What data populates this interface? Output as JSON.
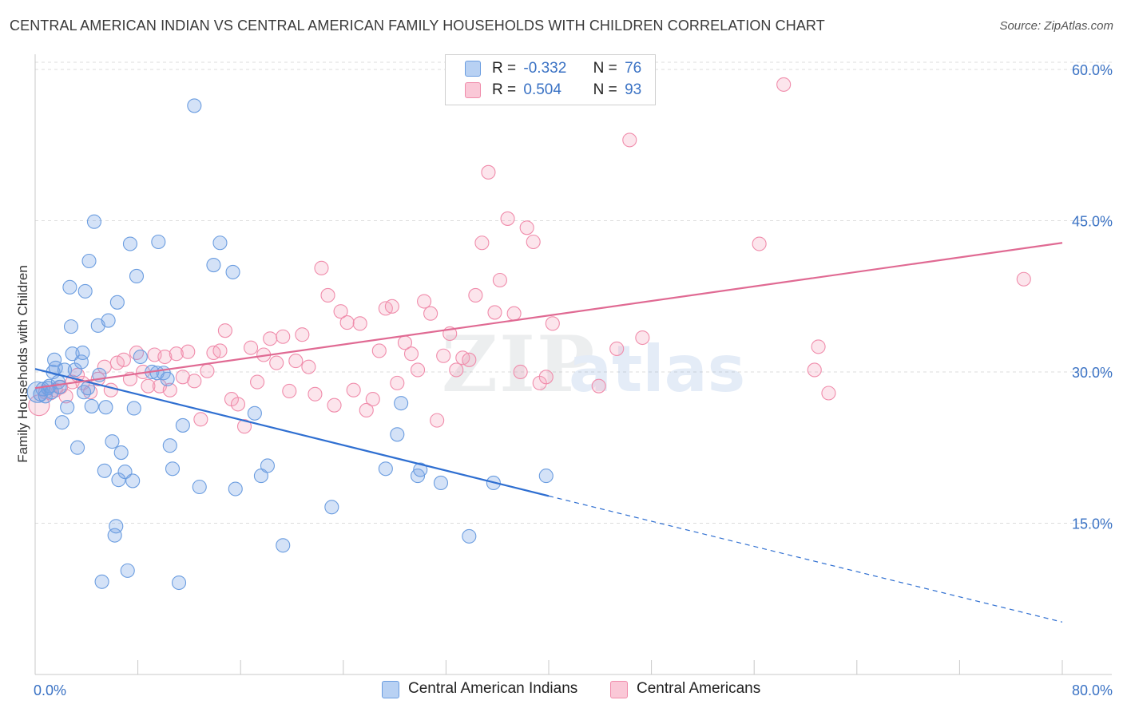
{
  "title": "CENTRAL AMERICAN INDIAN VS CENTRAL AMERICAN FAMILY HOUSEHOLDS WITH CHILDREN CORRELATION CHART",
  "source": "Source: ZipAtlas.com",
  "watermark": {
    "zip": "ZIP",
    "atlas": "atlas"
  },
  "legend": {
    "rows": [
      {
        "r_label": "R =",
        "r_value": "-0.332",
        "n_label": "N =",
        "n_value": "76",
        "color": "#6b9de0"
      },
      {
        "r_label": "R =",
        "r_value": "0.504",
        "n_label": "N =",
        "n_value": "93",
        "color": "#f08cab"
      }
    ]
  },
  "bottom_legend": [
    {
      "label": "Central American Indians",
      "fill": "#b8d1f3",
      "stroke": "#6b9de0"
    },
    {
      "label": "Central Americans",
      "fill": "#fac8d7",
      "stroke": "#f08cab"
    }
  ],
  "colors": {
    "blue_fill": "rgba(120,166,230,0.32)",
    "blue_stroke": "#6b9de0",
    "blue_line": "#2f6fd1",
    "pink_fill": "rgba(244,160,186,0.28)",
    "pink_stroke": "#f08cab",
    "pink_line": "#e06a93",
    "grid": "#dcdcdc",
    "axis_text": "#3a72c4"
  },
  "chart_data": {
    "type": "scatter",
    "title": "CENTRAL AMERICAN INDIAN VS CENTRAL AMERICAN FAMILY HOUSEHOLDS WITH CHILDREN CORRELATION CHART",
    "xlabel": "",
    "ylabel": "Family Households with Children",
    "xlim": [
      0,
      80
    ],
    "ylim": [
      0,
      61.5
    ],
    "x_tick_labels": [
      "0.0%",
      "80.0%"
    ],
    "y_ticks": [
      15,
      30,
      45,
      60
    ],
    "y_tick_labels": [
      "15.0%",
      "30.0%",
      "45.0%",
      "60.0%"
    ],
    "grid": true,
    "legend_position": "top-center",
    "series": [
      {
        "name": "Central American Indians",
        "points": [
          [
            0.2,
            28.0
          ],
          [
            0.4,
            27.8
          ],
          [
            0.6,
            28.3
          ],
          [
            0.8,
            27.6
          ],
          [
            1.0,
            28.4
          ],
          [
            1.1,
            28.6
          ],
          [
            1.3,
            28.0
          ],
          [
            1.4,
            30.0
          ],
          [
            1.5,
            31.2
          ],
          [
            1.6,
            30.4
          ],
          [
            1.8,
            29.0
          ],
          [
            1.9,
            28.5
          ],
          [
            2.1,
            25.0
          ],
          [
            2.3,
            30.2
          ],
          [
            2.5,
            26.5
          ],
          [
            2.7,
            38.4
          ],
          [
            2.8,
            34.5
          ],
          [
            2.9,
            31.8
          ],
          [
            3.1,
            30.2
          ],
          [
            3.3,
            22.5
          ],
          [
            3.6,
            31.0
          ],
          [
            3.7,
            31.9
          ],
          [
            3.8,
            28.0
          ],
          [
            3.9,
            38.0
          ],
          [
            4.1,
            28.4
          ],
          [
            4.2,
            41.0
          ],
          [
            4.4,
            26.6
          ],
          [
            4.6,
            44.9
          ],
          [
            4.9,
            34.6
          ],
          [
            5.0,
            29.7
          ],
          [
            5.4,
            20.2
          ],
          [
            5.5,
            26.5
          ],
          [
            5.7,
            35.1
          ],
          [
            6.0,
            23.1
          ],
          [
            6.2,
            13.8
          ],
          [
            6.3,
            14.7
          ],
          [
            6.4,
            36.9
          ],
          [
            6.5,
            19.3
          ],
          [
            6.7,
            22.0
          ],
          [
            7.0,
            20.1
          ],
          [
            7.2,
            10.3
          ],
          [
            7.4,
            42.7
          ],
          [
            7.6,
            19.2
          ],
          [
            7.7,
            26.4
          ],
          [
            7.9,
            39.5
          ],
          [
            8.2,
            31.5
          ],
          [
            9.1,
            30.0
          ],
          [
            9.5,
            29.9
          ],
          [
            9.6,
            42.9
          ],
          [
            10.0,
            29.9
          ],
          [
            10.3,
            29.3
          ],
          [
            10.5,
            22.7
          ],
          [
            10.7,
            20.4
          ],
          [
            11.2,
            9.1
          ],
          [
            11.5,
            24.7
          ],
          [
            12.4,
            56.4
          ],
          [
            12.8,
            18.6
          ],
          [
            13.9,
            40.6
          ],
          [
            14.4,
            42.8
          ],
          [
            15.4,
            39.9
          ],
          [
            15.6,
            18.4
          ],
          [
            17.1,
            25.9
          ],
          [
            17.6,
            19.7
          ],
          [
            18.1,
            20.7
          ],
          [
            19.3,
            12.8
          ],
          [
            23.1,
            16.6
          ],
          [
            27.3,
            20.4
          ],
          [
            28.2,
            23.8
          ],
          [
            28.5,
            26.9
          ],
          [
            29.8,
            19.7
          ],
          [
            30.0,
            20.3
          ],
          [
            31.6,
            19.0
          ],
          [
            33.8,
            13.7
          ],
          [
            35.7,
            19.0
          ],
          [
            39.8,
            19.7
          ],
          [
            5.2,
            9.2
          ]
        ]
      },
      {
        "name": "Central Americans",
        "points": [
          [
            0.3,
            26.7
          ],
          [
            0.8,
            28.0
          ],
          [
            1.2,
            27.9
          ],
          [
            1.6,
            28.2
          ],
          [
            2.0,
            28.5
          ],
          [
            2.4,
            27.6
          ],
          [
            2.9,
            29.0
          ],
          [
            3.3,
            29.7
          ],
          [
            3.7,
            28.9
          ],
          [
            4.3,
            28.0
          ],
          [
            4.9,
            29.3
          ],
          [
            5.4,
            30.5
          ],
          [
            5.9,
            28.2
          ],
          [
            6.4,
            30.9
          ],
          [
            6.9,
            31.2
          ],
          [
            7.4,
            29.3
          ],
          [
            7.9,
            31.9
          ],
          [
            8.4,
            30.0
          ],
          [
            8.8,
            28.6
          ],
          [
            9.3,
            31.7
          ],
          [
            9.7,
            28.6
          ],
          [
            10.1,
            31.5
          ],
          [
            10.5,
            28.2
          ],
          [
            11.0,
            31.8
          ],
          [
            11.5,
            29.5
          ],
          [
            11.9,
            32.0
          ],
          [
            12.4,
            29.1
          ],
          [
            12.9,
            25.3
          ],
          [
            13.4,
            30.1
          ],
          [
            13.9,
            31.9
          ],
          [
            14.4,
            32.1
          ],
          [
            14.8,
            34.1
          ],
          [
            15.3,
            27.3
          ],
          [
            15.8,
            26.8
          ],
          [
            16.3,
            24.6
          ],
          [
            16.8,
            32.4
          ],
          [
            17.3,
            29.0
          ],
          [
            17.8,
            31.7
          ],
          [
            18.3,
            33.3
          ],
          [
            18.8,
            30.9
          ],
          [
            19.3,
            33.5
          ],
          [
            19.8,
            28.1
          ],
          [
            20.3,
            31.1
          ],
          [
            20.8,
            33.7
          ],
          [
            21.3,
            30.5
          ],
          [
            21.8,
            27.8
          ],
          [
            22.3,
            40.3
          ],
          [
            22.8,
            37.6
          ],
          [
            23.3,
            26.7
          ],
          [
            23.8,
            36.0
          ],
          [
            24.3,
            34.9
          ],
          [
            24.8,
            28.2
          ],
          [
            25.3,
            34.8
          ],
          [
            25.8,
            26.2
          ],
          [
            26.3,
            27.3
          ],
          [
            26.8,
            32.1
          ],
          [
            27.3,
            36.3
          ],
          [
            27.8,
            36.5
          ],
          [
            28.2,
            28.9
          ],
          [
            28.8,
            32.9
          ],
          [
            29.3,
            31.8
          ],
          [
            29.8,
            30.2
          ],
          [
            30.3,
            37.0
          ],
          [
            30.8,
            35.8
          ],
          [
            31.3,
            25.2
          ],
          [
            31.8,
            31.6
          ],
          [
            32.3,
            33.8
          ],
          [
            32.8,
            30.2
          ],
          [
            33.3,
            31.4
          ],
          [
            33.8,
            31.2
          ],
          [
            34.3,
            37.6
          ],
          [
            34.8,
            42.8
          ],
          [
            35.3,
            49.8
          ],
          [
            35.8,
            35.9
          ],
          [
            36.2,
            39.1
          ],
          [
            36.8,
            45.2
          ],
          [
            37.3,
            35.8
          ],
          [
            37.8,
            30.0
          ],
          [
            38.3,
            44.3
          ],
          [
            38.8,
            42.9
          ],
          [
            39.3,
            28.9
          ],
          [
            39.8,
            29.5
          ],
          [
            40.3,
            34.8
          ],
          [
            43.9,
            28.6
          ],
          [
            45.3,
            32.3
          ],
          [
            46.3,
            53.0
          ],
          [
            47.3,
            33.4
          ],
          [
            56.4,
            42.7
          ],
          [
            58.3,
            58.5
          ],
          [
            60.7,
            30.2
          ],
          [
            61.0,
            32.5
          ],
          [
            61.8,
            27.9
          ],
          [
            77.0,
            39.2
          ]
        ]
      }
    ],
    "trendlines": [
      {
        "series": "Central American Indians",
        "x_start": 0,
        "y_start": 30.3,
        "x_solid_end": 40,
        "y_solid_end": 17.7,
        "x_dashed_end": 80,
        "y_dashed_end": 5.2
      },
      {
        "series": "Central Americans",
        "x_start": 0,
        "y_start": 28.4,
        "x_end": 80,
        "y_end": 42.8
      }
    ]
  }
}
